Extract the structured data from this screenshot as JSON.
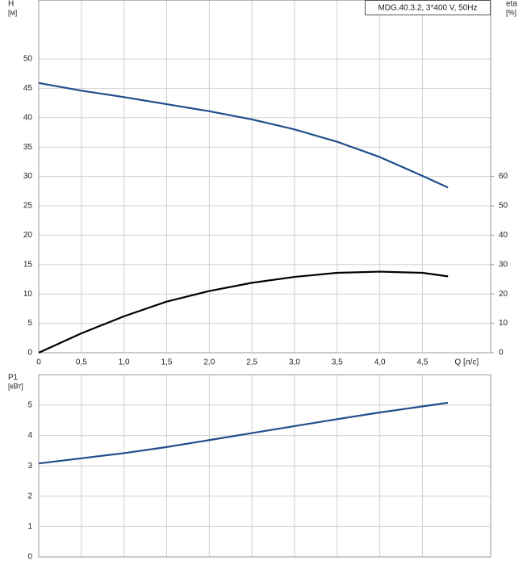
{
  "chart_data": [
    {
      "type": "line",
      "title": "MDG.40.3.2, 3*400 V, 50Hz",
      "y_label": [
        "H",
        "[м]"
      ],
      "y2_label": [
        "eta",
        "[%]"
      ],
      "x_label": "Q [л/с]",
      "x": [
        0,
        0.5,
        1.0,
        1.5,
        2.0,
        2.5,
        3.0,
        3.5,
        4.0,
        4.5,
        4.8
      ],
      "xlim": [
        0,
        5.3
      ],
      "xticks": [
        0,
        {
          "value": 0.5,
          "label": "0,5"
        },
        {
          "value": 1.0,
          "label": "1,0"
        },
        {
          "value": 1.5,
          "label": "1,5"
        },
        {
          "value": 2.0,
          "label": "2,0"
        },
        {
          "value": 2.5,
          "label": "2,5"
        },
        {
          "value": 3.0,
          "label": "3,0"
        },
        {
          "value": 3.5,
          "label": "3,5"
        },
        {
          "value": 4.0,
          "label": "4,0"
        },
        {
          "value": 4.5,
          "label": "4,5"
        }
      ],
      "ylim": [
        0,
        60
      ],
      "yticks": [
        0,
        5,
        10,
        15,
        20,
        25,
        30,
        35,
        40,
        45,
        50
      ],
      "y2lim": [
        0,
        120
      ],
      "y2ticks": [
        0,
        10,
        20,
        30,
        40,
        50,
        60
      ],
      "grid": true,
      "series": [
        {
          "color": "#1f4e8c",
          "axis": "y",
          "values": [
            45.9,
            44.6,
            43.5,
            42.3,
            41.1,
            39.7,
            38.0,
            35.9,
            33.3,
            30.1,
            28.1
          ]
        },
        {
          "color": "#000000",
          "axis": "y2",
          "values": [
            0,
            6.6,
            12.4,
            17.4,
            21.0,
            23.8,
            25.8,
            27.2,
            27.6,
            27.2,
            26.0
          ]
        }
      ]
    },
    {
      "type": "line",
      "y_label": [
        "P1",
        "[кВт]"
      ],
      "x": [
        0,
        0.5,
        1.0,
        1.5,
        2.0,
        2.5,
        3.0,
        3.5,
        4.0,
        4.5,
        4.8
      ],
      "xlim": [
        0,
        5.3
      ],
      "ylim": [
        0,
        6
      ],
      "yticks": [
        0,
        1,
        2,
        3,
        4,
        5
      ],
      "grid": true,
      "series": [
        {
          "color": "#1f4e8c",
          "axis": "y",
          "values": [
            3.08,
            3.25,
            3.42,
            3.62,
            3.85,
            4.08,
            4.31,
            4.54,
            4.76,
            4.96,
            5.08
          ]
        }
      ]
    }
  ]
}
